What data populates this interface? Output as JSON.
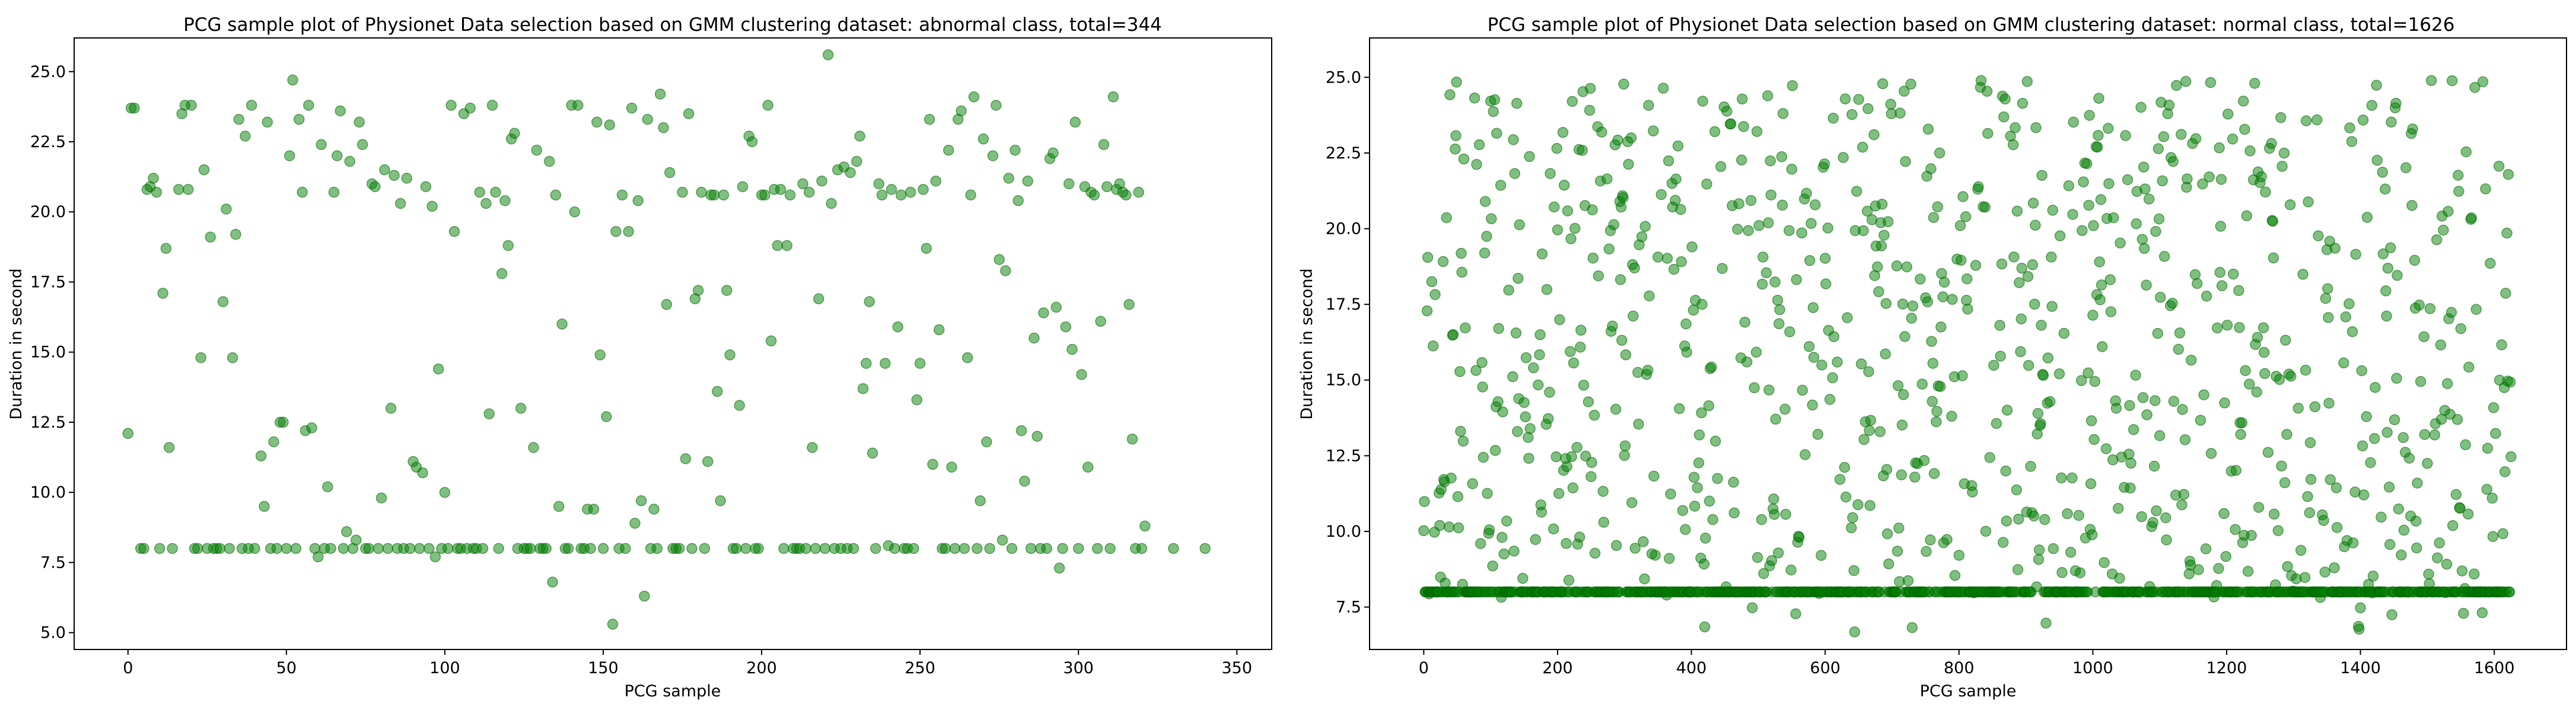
{
  "figure": {
    "left_title": "PCG sample plot of Physionet Data selection based on GMM clustering dataset: abnormal class, total=344",
    "right_title": "PCG sample plot of Physionet Data selection based on GMM clustering dataset: normal class, total=1626"
  },
  "colors": {
    "point_fill": "#008000",
    "point_alpha": 0.5,
    "axes": "#000000"
  },
  "chart_data": [
    {
      "type": "scatter",
      "title": "PCG sample plot of Physionet Data selection based on GMM clustering dataset: abnormal class, total=344",
      "xlabel": "PCG sample",
      "ylabel": "Duration in second",
      "xlim": [
        -17,
        361
      ],
      "ylim": [
        4.4,
        26.2
      ],
      "xticks": [
        0,
        50,
        100,
        150,
        200,
        250,
        300,
        350
      ],
      "yticks": [
        5.0,
        7.5,
        10.0,
        12.5,
        15.0,
        17.5,
        20.0,
        22.5,
        25.0
      ],
      "grid": false,
      "total": 344,
      "points": [
        [
          0,
          12.1
        ],
        [
          1,
          23.7
        ],
        [
          2,
          23.7
        ],
        [
          4,
          8.0
        ],
        [
          5,
          8.0
        ],
        [
          6,
          20.8
        ],
        [
          7,
          20.9
        ],
        [
          8,
          21.2
        ],
        [
          9,
          20.7
        ],
        [
          10,
          8.0
        ],
        [
          11,
          17.1
        ],
        [
          12,
          18.7
        ],
        [
          13,
          11.6
        ],
        [
          14,
          8.0
        ],
        [
          16,
          20.8
        ],
        [
          17,
          23.5
        ],
        [
          18,
          23.8
        ],
        [
          19,
          20.8
        ],
        [
          20,
          23.8
        ],
        [
          21,
          8.0
        ],
        [
          22,
          8.0
        ],
        [
          23,
          14.8
        ],
        [
          24,
          21.5
        ],
        [
          25,
          8.0
        ],
        [
          26,
          19.1
        ],
        [
          27,
          8.0
        ],
        [
          28,
          8.0
        ],
        [
          29,
          8.0
        ],
        [
          30,
          16.8
        ],
        [
          31,
          20.1
        ],
        [
          32,
          8.0
        ],
        [
          33,
          14.8
        ],
        [
          34,
          19.2
        ],
        [
          35,
          23.3
        ],
        [
          36,
          8.0
        ],
        [
          37,
          22.7
        ],
        [
          38,
          8.0
        ],
        [
          39,
          23.8
        ],
        [
          40,
          8.0
        ],
        [
          42,
          11.3
        ],
        [
          43,
          9.5
        ],
        [
          44,
          23.2
        ],
        [
          45,
          8.0
        ],
        [
          46,
          11.8
        ],
        [
          47,
          8.0
        ],
        [
          48,
          12.5
        ],
        [
          49,
          12.5
        ],
        [
          50,
          8.0
        ],
        [
          51,
          22.0
        ],
        [
          52,
          24.7
        ],
        [
          53,
          8.0
        ],
        [
          54,
          23.3
        ],
        [
          55,
          20.7
        ],
        [
          56,
          12.2
        ],
        [
          57,
          23.8
        ],
        [
          58,
          12.3
        ],
        [
          59,
          8.0
        ],
        [
          60,
          7.7
        ],
        [
          61,
          22.4
        ],
        [
          62,
          8.0
        ],
        [
          63,
          10.2
        ],
        [
          64,
          8.0
        ],
        [
          65,
          20.7
        ],
        [
          66,
          22.0
        ],
        [
          67,
          23.6
        ],
        [
          68,
          8.0
        ],
        [
          69,
          8.6
        ],
        [
          70,
          21.8
        ],
        [
          71,
          8.0
        ],
        [
          72,
          8.3
        ],
        [
          73,
          23.2
        ],
        [
          74,
          22.4
        ],
        [
          75,
          8.0
        ],
        [
          76,
          8.0
        ],
        [
          77,
          21.0
        ],
        [
          78,
          20.9
        ],
        [
          79,
          8.0
        ],
        [
          80,
          9.8
        ],
        [
          81,
          21.5
        ],
        [
          82,
          8.0
        ],
        [
          83,
          13.0
        ],
        [
          84,
          21.3
        ],
        [
          85,
          8.0
        ],
        [
          86,
          20.3
        ],
        [
          87,
          8.0
        ],
        [
          88,
          21.2
        ],
        [
          89,
          8.0
        ],
        [
          90,
          11.1
        ],
        [
          91,
          10.9
        ],
        [
          92,
          8.0
        ],
        [
          93,
          10.7
        ],
        [
          94,
          20.9
        ],
        [
          95,
          8.0
        ],
        [
          96,
          20.2
        ],
        [
          97,
          7.7
        ],
        [
          98,
          14.4
        ],
        [
          99,
          8.0
        ],
        [
          100,
          10.0
        ],
        [
          101,
          8.0
        ],
        [
          102,
          23.8
        ],
        [
          103,
          19.3
        ],
        [
          104,
          8.0
        ],
        [
          105,
          8.0
        ],
        [
          106,
          23.5
        ],
        [
          107,
          8.0
        ],
        [
          108,
          23.7
        ],
        [
          109,
          8.0
        ],
        [
          110,
          8.0
        ],
        [
          111,
          20.7
        ],
        [
          112,
          8.0
        ],
        [
          113,
          20.3
        ],
        [
          114,
          12.8
        ],
        [
          115,
          23.8
        ],
        [
          116,
          20.7
        ],
        [
          117,
          8.0
        ],
        [
          118,
          17.8
        ],
        [
          119,
          20.4
        ],
        [
          120,
          18.8
        ],
        [
          121,
          22.6
        ],
        [
          122,
          22.8
        ],
        [
          123,
          8.0
        ],
        [
          124,
          13.0
        ],
        [
          125,
          8.0
        ],
        [
          126,
          8.0
        ],
        [
          127,
          8.0
        ],
        [
          128,
          11.6
        ],
        [
          129,
          22.2
        ],
        [
          130,
          8.0
        ],
        [
          131,
          8.0
        ],
        [
          132,
          8.0
        ],
        [
          133,
          21.8
        ],
        [
          134,
          6.8
        ],
        [
          135,
          20.6
        ],
        [
          136,
          9.5
        ],
        [
          137,
          16.0
        ],
        [
          138,
          8.0
        ],
        [
          139,
          8.0
        ],
        [
          140,
          23.8
        ],
        [
          141,
          20.0
        ],
        [
          142,
          23.8
        ],
        [
          143,
          8.0
        ],
        [
          144,
          8.0
        ],
        [
          145,
          9.4
        ],
        [
          146,
          8.0
        ],
        [
          147,
          9.4
        ],
        [
          148,
          23.2
        ],
        [
          149,
          14.9
        ],
        [
          150,
          8.0
        ],
        [
          151,
          12.7
        ],
        [
          152,
          23.1
        ],
        [
          153,
          5.3
        ],
        [
          154,
          19.3
        ],
        [
          155,
          8.0
        ],
        [
          156,
          20.6
        ],
        [
          157,
          8.0
        ],
        [
          158,
          19.3
        ],
        [
          159,
          23.7
        ],
        [
          160,
          8.9
        ],
        [
          161,
          20.4
        ],
        [
          162,
          9.7
        ],
        [
          163,
          6.3
        ],
        [
          164,
          23.3
        ],
        [
          165,
          8.0
        ],
        [
          166,
          9.4
        ],
        [
          167,
          8.0
        ],
        [
          168,
          24.2
        ],
        [
          169,
          23.0
        ],
        [
          170,
          16.7
        ],
        [
          171,
          21.4
        ],
        [
          172,
          8.0
        ],
        [
          173,
          8.0
        ],
        [
          174,
          8.0
        ],
        [
          175,
          20.7
        ],
        [
          176,
          11.2
        ],
        [
          177,
          23.5
        ],
        [
          178,
          8.0
        ],
        [
          179,
          16.9
        ],
        [
          180,
          17.2
        ],
        [
          181,
          20.7
        ],
        [
          182,
          8.0
        ],
        [
          183,
          11.1
        ],
        [
          184,
          20.6
        ],
        [
          185,
          20.6
        ],
        [
          186,
          13.6
        ],
        [
          187,
          9.7
        ],
        [
          188,
          20.6
        ],
        [
          189,
          17.2
        ],
        [
          190,
          14.9
        ],
        [
          191,
          8.0
        ],
        [
          192,
          8.0
        ],
        [
          193,
          13.1
        ],
        [
          194,
          20.9
        ],
        [
          195,
          8.0
        ],
        [
          196,
          22.7
        ],
        [
          197,
          22.5
        ],
        [
          198,
          8.0
        ],
        [
          199,
          8.0
        ],
        [
          200,
          20.6
        ],
        [
          201,
          20.6
        ],
        [
          202,
          23.8
        ],
        [
          203,
          15.4
        ],
        [
          204,
          20.8
        ],
        [
          205,
          18.8
        ],
        [
          206,
          20.8
        ],
        [
          207,
          8.0
        ],
        [
          208,
          18.8
        ],
        [
          209,
          20.6
        ],
        [
          210,
          8.0
        ],
        [
          211,
          8.0
        ],
        [
          212,
          8.0
        ],
        [
          213,
          21.0
        ],
        [
          214,
          8.0
        ],
        [
          215,
          20.7
        ],
        [
          216,
          11.6
        ],
        [
          217,
          8.0
        ],
        [
          218,
          16.9
        ],
        [
          219,
          21.1
        ],
        [
          220,
          8.0
        ],
        [
          221,
          25.6
        ],
        [
          222,
          20.3
        ],
        [
          223,
          8.0
        ],
        [
          224,
          21.5
        ],
        [
          225,
          8.0
        ],
        [
          226,
          21.6
        ],
        [
          227,
          8.0
        ],
        [
          228,
          21.4
        ],
        [
          229,
          8.0
        ],
        [
          230,
          21.8
        ],
        [
          231,
          22.7
        ],
        [
          232,
          13.7
        ],
        [
          233,
          14.6
        ],
        [
          234,
          16.8
        ],
        [
          235,
          11.4
        ],
        [
          236,
          8.0
        ],
        [
          237,
          21.0
        ],
        [
          238,
          20.6
        ],
        [
          239,
          14.6
        ],
        [
          240,
          8.1
        ],
        [
          241,
          20.8
        ],
        [
          242,
          8.0
        ],
        [
          243,
          15.9
        ],
        [
          244,
          20.6
        ],
        [
          245,
          8.0
        ],
        [
          246,
          8.0
        ],
        [
          247,
          20.7
        ],
        [
          248,
          8.0
        ],
        [
          249,
          13.3
        ],
        [
          250,
          14.6
        ],
        [
          251,
          20.8
        ],
        [
          252,
          18.7
        ],
        [
          253,
          23.3
        ],
        [
          254,
          11.0
        ],
        [
          255,
          21.1
        ],
        [
          256,
          15.8
        ],
        [
          257,
          8.0
        ],
        [
          258,
          8.0
        ],
        [
          259,
          22.2
        ],
        [
          260,
          10.9
        ],
        [
          261,
          8.0
        ],
        [
          262,
          23.3
        ],
        [
          263,
          23.6
        ],
        [
          264,
          8.0
        ],
        [
          265,
          14.8
        ],
        [
          266,
          20.6
        ],
        [
          267,
          24.1
        ],
        [
          268,
          8.0
        ],
        [
          269,
          9.7
        ],
        [
          270,
          22.6
        ],
        [
          271,
          11.8
        ],
        [
          272,
          8.0
        ],
        [
          273,
          22.0
        ],
        [
          274,
          23.8
        ],
        [
          275,
          18.3
        ],
        [
          276,
          8.3
        ],
        [
          277,
          17.9
        ],
        [
          278,
          21.2
        ],
        [
          279,
          8.0
        ],
        [
          280,
          22.2
        ],
        [
          281,
          20.4
        ],
        [
          282,
          12.2
        ],
        [
          283,
          10.4
        ],
        [
          284,
          21.1
        ],
        [
          285,
          8.0
        ],
        [
          286,
          15.5
        ],
        [
          287,
          12.0
        ],
        [
          288,
          8.0
        ],
        [
          289,
          16.4
        ],
        [
          290,
          8.0
        ],
        [
          291,
          21.9
        ],
        [
          292,
          22.1
        ],
        [
          293,
          16.6
        ],
        [
          294,
          7.3
        ],
        [
          295,
          8.0
        ],
        [
          296,
          15.9
        ],
        [
          297,
          21.0
        ],
        [
          298,
          15.1
        ],
        [
          299,
          23.2
        ],
        [
          300,
          8.0
        ],
        [
          301,
          14.2
        ],
        [
          302,
          20.9
        ],
        [
          303,
          10.9
        ],
        [
          304,
          20.7
        ],
        [
          305,
          20.6
        ],
        [
          306,
          8.0
        ],
        [
          307,
          16.1
        ],
        [
          308,
          22.4
        ],
        [
          309,
          20.9
        ],
        [
          310,
          8.0
        ],
        [
          311,
          24.1
        ],
        [
          312,
          20.8
        ],
        [
          313,
          21.0
        ],
        [
          314,
          20.7
        ],
        [
          315,
          20.6
        ],
        [
          316,
          16.7
        ],
        [
          317,
          11.9
        ],
        [
          318,
          8.0
        ],
        [
          319,
          20.7
        ],
        [
          320,
          8.0
        ],
        [
          321,
          8.8
        ],
        [
          330,
          8.0
        ],
        [
          340,
          8.0
        ]
      ]
    },
    {
      "type": "scatter",
      "title": "PCG sample plot of Physionet Data selection based on GMM clustering dataset: normal class, total=1626",
      "xlabel": "PCG sample",
      "ylabel": "Duration in second",
      "xlim": [
        -81,
        1708
      ],
      "ylim": [
        6.1,
        26.3
      ],
      "xticks": [
        0,
        200,
        400,
        600,
        800,
        1000,
        1200,
        1400,
        1600
      ],
      "yticks": [
        7.5,
        10.0,
        12.5,
        15.0,
        17.5,
        20.0,
        22.5,
        25.0
      ],
      "grid": false,
      "total": 1626,
      "generated": {
        "count": 1626,
        "baseline_value": 8.0,
        "baseline_fraction": 0.46,
        "spread_min": 6.6,
        "spread_max": 25.3,
        "seed": 1626
      }
    }
  ]
}
